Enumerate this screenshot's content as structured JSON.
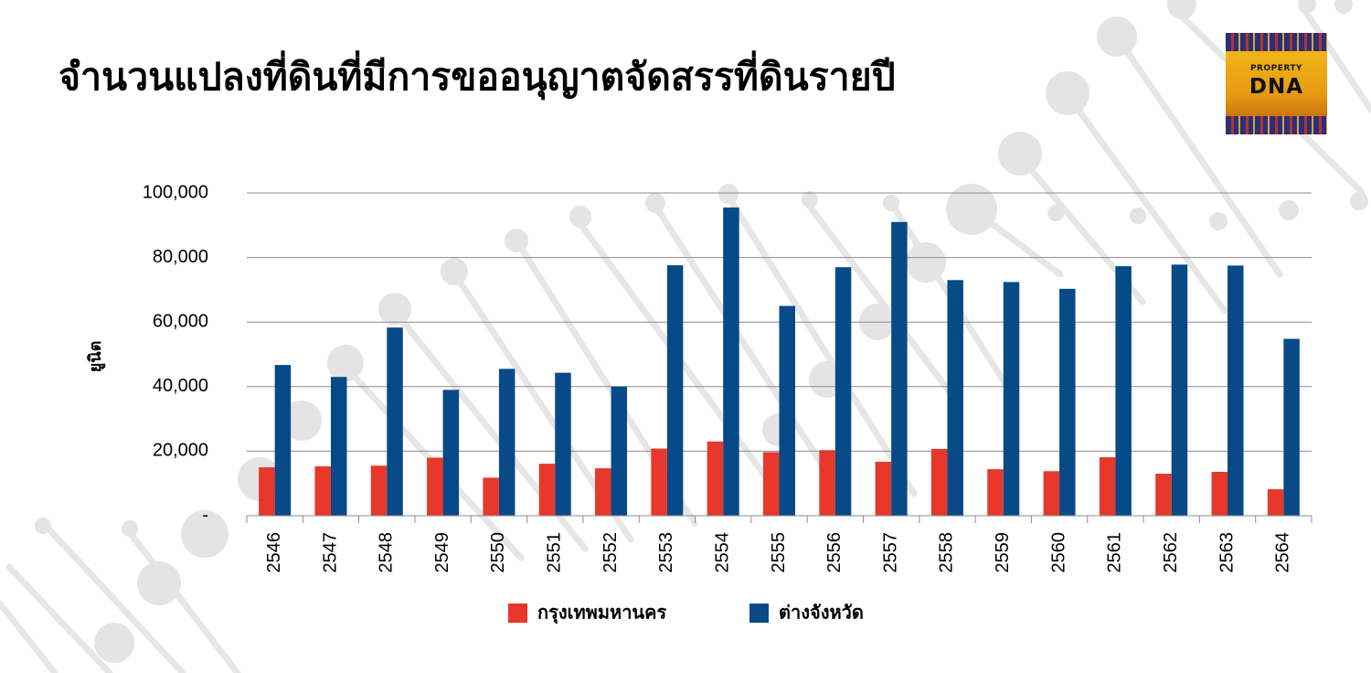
{
  "slide": {
    "title": "จำนวนแปลงที่ดินที่มีการขออนุญาตจัดสรรที่ดินรายปี"
  },
  "logo": {
    "text_small": "PROPERTY",
    "text_big": "DNA"
  },
  "chart_data": {
    "type": "bar",
    "categories": [
      "2546",
      "2547",
      "2548",
      "2549",
      "2550",
      "2551",
      "2552",
      "2553",
      "2554",
      "2555",
      "2556",
      "2557",
      "2558",
      "2559",
      "2560",
      "2561",
      "2562",
      "2563",
      "2564"
    ],
    "series": [
      {
        "name": "กรุงเทพมหานคร",
        "color": "#e8372b",
        "values": [
          15000,
          15300,
          15500,
          18000,
          11800,
          16100,
          14700,
          20800,
          23000,
          19700,
          20300,
          16700,
          20700,
          14400,
          13800,
          18100,
          13000,
          13600,
          8200
        ]
      },
      {
        "name": "ต่างจังหวัด",
        "color": "#084a87",
        "values": [
          46700,
          43000,
          58300,
          39000,
          45500,
          44300,
          40000,
          77600,
          95500,
          65000,
          77000,
          91000,
          73000,
          72400,
          70300,
          77300,
          77800,
          77500,
          54800
        ]
      }
    ],
    "ylabel": "ยูนิต",
    "ylim": [
      0,
      100000
    ],
    "yticks": [
      0,
      20000,
      40000,
      60000,
      80000,
      100000
    ],
    "ytick_labels": [
      "-",
      "20,000",
      "40,000",
      "60,000",
      "80,000",
      "100,000"
    ],
    "grid": true,
    "legend_position": "bottom"
  }
}
